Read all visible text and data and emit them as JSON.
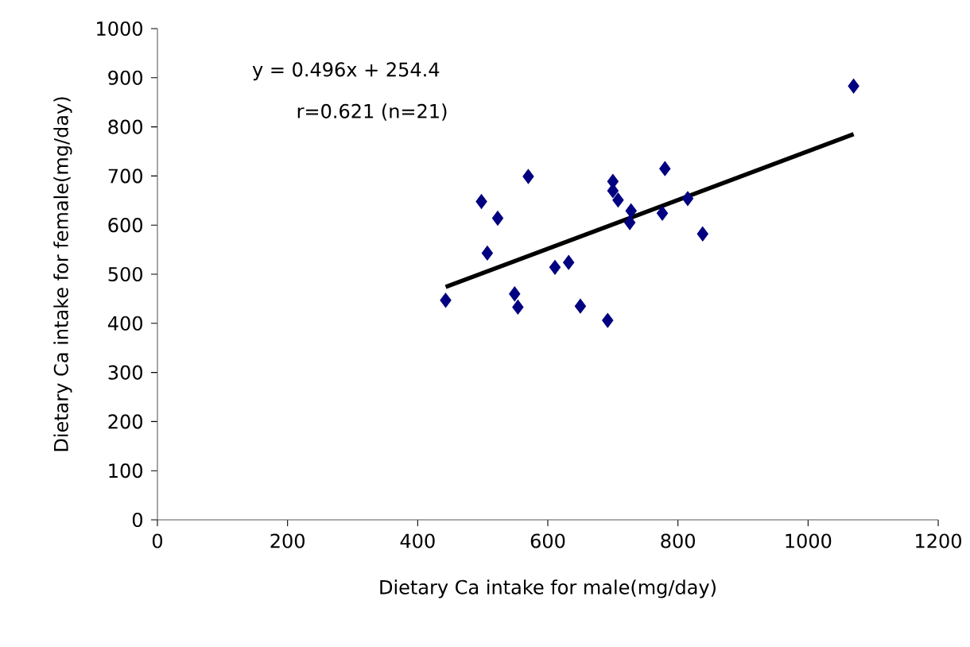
{
  "chart_data": {
    "type": "scatter",
    "xlabel": "Dietary Ca intake for male(mg/day)",
    "ylabel": "Dietary Ca intake for female(mg/day)",
    "annotations": [
      "y = 0.496x + 254.4",
      "r=0.621 (n=21)"
    ],
    "xlim": [
      0,
      1200
    ],
    "xticks": [
      0,
      200,
      400,
      600,
      800,
      1000,
      1200
    ],
    "ylim": [
      0,
      1000
    ],
    "yticks": [
      0,
      100,
      200,
      300,
      400,
      500,
      600,
      700,
      800,
      900,
      1000
    ],
    "grid": false,
    "marker": "diamond",
    "series": [
      {
        "color": "#000080",
        "x": [
          443,
          498,
          523,
          507,
          570,
          549,
          554,
          611,
          632,
          650,
          692,
          700,
          700,
          708,
          728,
          726,
          780,
          776,
          815,
          838,
          1070
        ],
        "values": [
          447,
          648,
          614,
          543,
          699,
          460,
          433,
          514,
          524,
          435,
          406,
          689,
          670,
          651,
          629,
          605,
          715,
          624,
          654,
          582,
          883
        ]
      },
      {
        "type": "line",
        "color": "#000000",
        "marker": "none",
        "line_style": "solid",
        "x": [
          443,
          1070
        ],
        "values": [
          474,
          785
        ]
      }
    ]
  }
}
